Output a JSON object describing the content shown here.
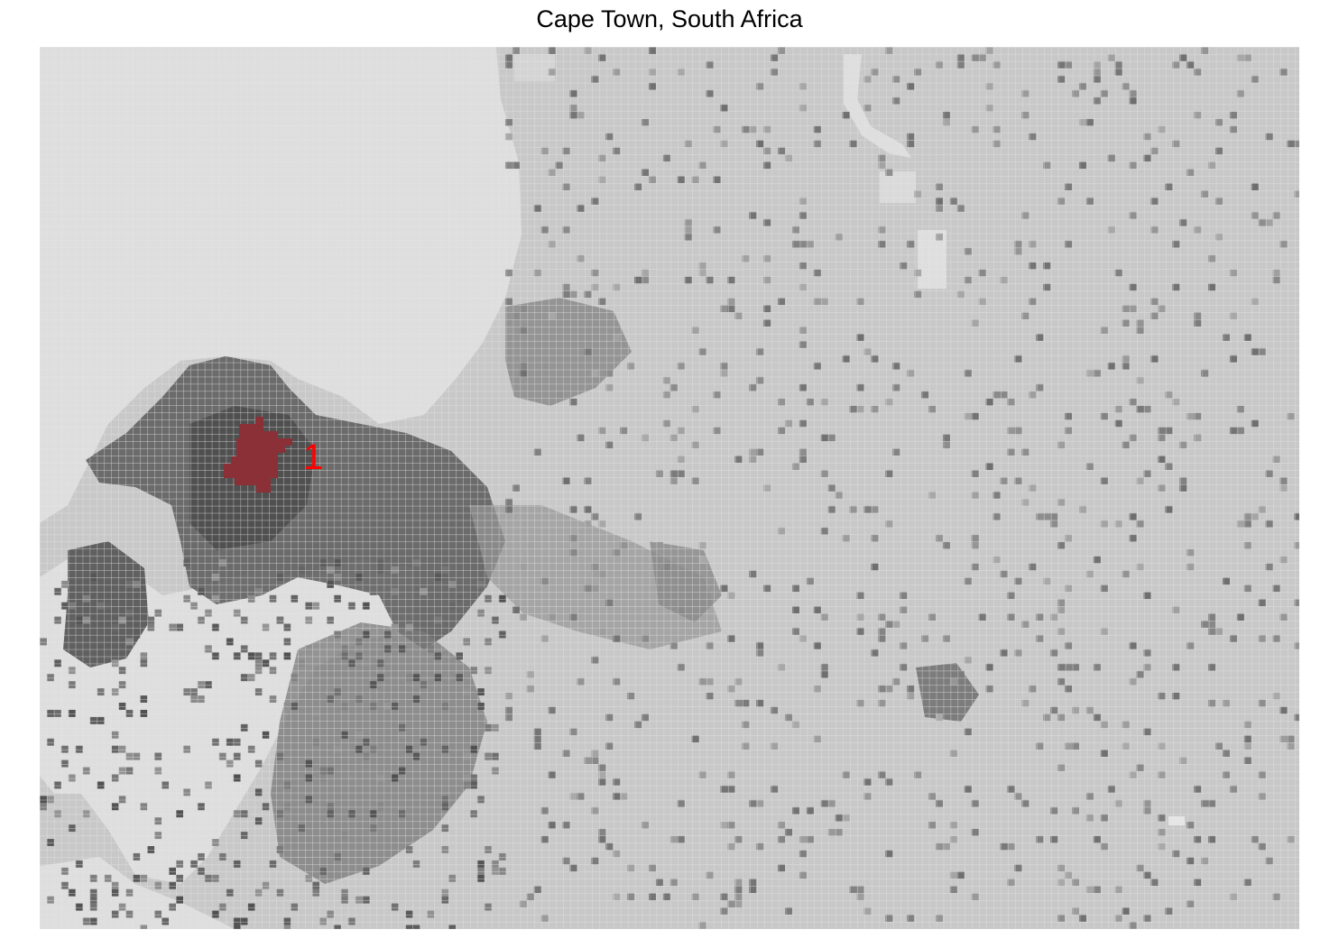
{
  "title": "Cape Town, South Africa",
  "map": {
    "kind": "grid-raster",
    "palette": {
      "water": "#dedede",
      "land": "#c8c8c8",
      "grid_line": "#e6e6e6",
      "density_dark": "#4a4a4a",
      "highlight": "#8b3037",
      "label": "#ff0000"
    },
    "highlight": {
      "label": "1",
      "description_on_map": ""
    }
  }
}
